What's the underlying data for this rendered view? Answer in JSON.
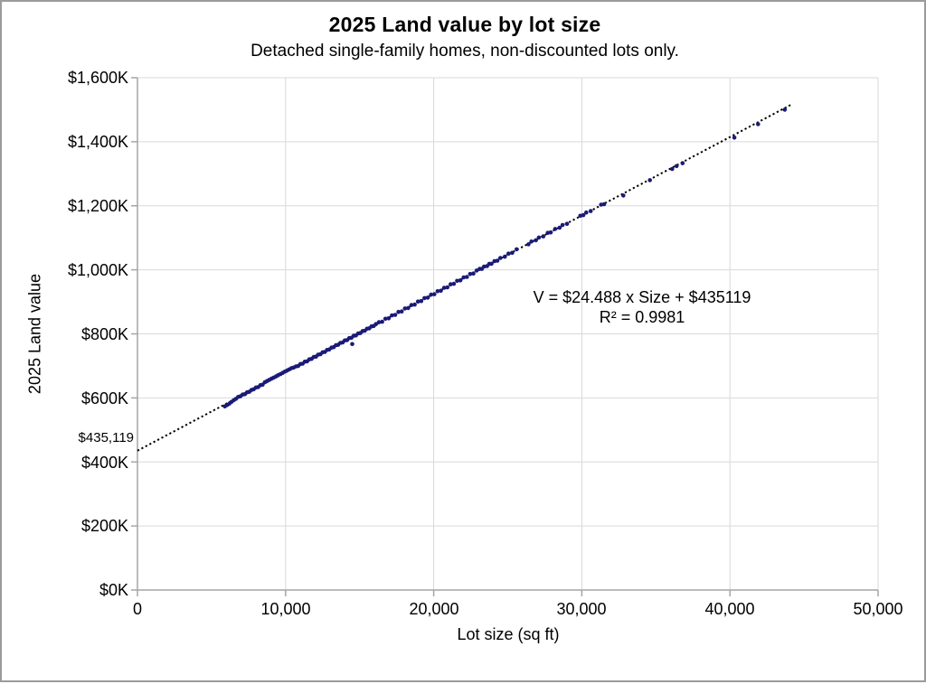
{
  "chart": {
    "title": "2025 Land value by lot size",
    "subtitle": "Detached single-family homes, non-discounted lots only.",
    "annotation_line1": "V = $24.488 x Size + $435119",
    "annotation_line2": "R² = 0.9981",
    "intercept_label": "$435,119",
    "x_axis_title": "Lot size (sq ft)",
    "y_axis_title": "2025 Land value"
  },
  "chart_data": {
    "type": "scatter",
    "title": "2025 Land value by lot size",
    "subtitle": "Detached single-family homes, non-discounted lots only.",
    "xlabel": "Lot size (sq ft)",
    "ylabel": "2025 Land value",
    "xlim": [
      0,
      50000
    ],
    "ylim_dollars_k": [
      0,
      1600
    ],
    "grid": true,
    "legend": "none",
    "x_ticks": [
      0,
      10000,
      20000,
      30000,
      40000,
      50000
    ],
    "x_tick_labels": [
      "0",
      "10,000",
      "20,000",
      "30,000",
      "40,000",
      "50,000"
    ],
    "y_ticks_k": [
      1600,
      1400,
      1200,
      1000,
      800,
      600,
      400,
      200,
      0
    ],
    "y_tick_labels": [
      "$1,600K",
      "$1,400K",
      "$1,200K",
      "$1,000K",
      "$800K",
      "$600K",
      "$400K",
      "$200K",
      "$0K"
    ],
    "marker_color": "#1a1a78",
    "gridline_color": "#d9d9d9",
    "axis_color": "#a6a6a6",
    "trendline": {
      "equation_text": "V = $24.488 x Size + $435119",
      "slope": 24.488,
      "intercept": 435119,
      "intercept_label": "$435,119",
      "r_squared": 0.9981,
      "x_start": 0,
      "x_end": 44200,
      "style": "dotted",
      "color": "#000000"
    },
    "points_size_sqft_vs_value_k": [
      [
        5900,
        573.6
      ],
      [
        6050,
        577.5
      ],
      [
        6200,
        582.0
      ],
      [
        6350,
        587.5
      ],
      [
        6500,
        593.0
      ],
      [
        6650,
        597.2
      ],
      [
        6800,
        603.0
      ],
      [
        6950,
        604.9
      ],
      [
        7100,
        610.5
      ],
      [
        7250,
        611.8
      ],
      [
        7400,
        617.5
      ],
      [
        7550,
        619.2
      ],
      [
        7700,
        624.8
      ],
      [
        7850,
        626.9
      ],
      [
        8000,
        632.4
      ],
      [
        8150,
        633.9
      ],
      [
        8300,
        639.6
      ],
      [
        8450,
        641.5
      ],
      [
        8600,
        648.9
      ],
      [
        8750,
        652.6
      ],
      [
        8900,
        656.3
      ],
      [
        9050,
        660.0
      ],
      [
        9200,
        663.5
      ],
      [
        9350,
        667.2
      ],
      [
        9500,
        671.0
      ],
      [
        9650,
        674.5
      ],
      [
        9800,
        678.2
      ],
      [
        9950,
        682.0
      ],
      [
        10100,
        685.5
      ],
      [
        10250,
        689.2
      ],
      [
        10400,
        693.0
      ],
      [
        10550,
        694.8
      ],
      [
        10700,
        698.5
      ],
      [
        10850,
        699.7
      ],
      [
        11000,
        705.8
      ],
      [
        11150,
        707.0
      ],
      [
        11300,
        713.1
      ],
      [
        11450,
        714.3
      ],
      [
        11600,
        720.5
      ],
      [
        11750,
        721.7
      ],
      [
        11900,
        727.8
      ],
      [
        12050,
        729.0
      ],
      [
        12200,
        735.2
      ],
      [
        12350,
        736.4
      ],
      [
        12500,
        742.5
      ],
      [
        12650,
        743.7
      ],
      [
        12800,
        749.9
      ],
      [
        12950,
        751.1
      ],
      [
        13100,
        757.2
      ],
      [
        13250,
        758.4
      ],
      [
        13400,
        764.6
      ],
      [
        13550,
        765.8
      ],
      [
        13700,
        771.9
      ],
      [
        13850,
        773.1
      ],
      [
        14000,
        779.3
      ],
      [
        14150,
        780.4
      ],
      [
        14300,
        786.6
      ],
      [
        14450,
        787.8
      ],
      [
        14600,
        794.0
      ],
      [
        14750,
        795.1
      ],
      [
        14900,
        801.3
      ],
      [
        15050,
        802.5
      ],
      [
        15200,
        808.7
      ],
      [
        15350,
        809.8
      ],
      [
        15500,
        816.0
      ],
      [
        15650,
        817.2
      ],
      [
        15800,
        823.3
      ],
      [
        15950,
        824.5
      ],
      [
        16100,
        830.6
      ],
      [
        14500,
        768.0
      ],
      [
        16300,
        836.3
      ],
      [
        16520,
        837.7
      ],
      [
        16740,
        847.1
      ],
      [
        16960,
        848.4
      ],
      [
        17180,
        857.8
      ],
      [
        17400,
        859.2
      ],
      [
        17620,
        868.6
      ],
      [
        17840,
        870.0
      ],
      [
        18060,
        879.4
      ],
      [
        18280,
        880.8
      ],
      [
        18500,
        890.1
      ],
      [
        18720,
        891.5
      ],
      [
        18940,
        900.9
      ],
      [
        19160,
        902.3
      ],
      [
        19380,
        911.7
      ],
      [
        19600,
        913.1
      ],
      [
        19820,
        922.5
      ],
      [
        20040,
        923.9
      ],
      [
        20260,
        933.2
      ],
      [
        20480,
        934.6
      ],
      [
        20700,
        944.0
      ],
      [
        20920,
        945.4
      ],
      [
        21140,
        954.8
      ],
      [
        21360,
        956.2
      ],
      [
        21580,
        965.6
      ],
      [
        21800,
        967.0
      ],
      [
        22020,
        976.3
      ],
      [
        22240,
        977.7
      ],
      [
        22460,
        987.1
      ],
      [
        22680,
        988.5
      ],
      [
        22900,
        997.9
      ],
      [
        23100,
        1002.8
      ],
      [
        23250,
        1003.0
      ],
      [
        23400,
        1010.1
      ],
      [
        23600,
        1011.5
      ],
      [
        23750,
        1018.7
      ],
      [
        23900,
        1018.9
      ],
      [
        24100,
        1027.3
      ],
      [
        24300,
        1028.7
      ],
      [
        24500,
        1037.1
      ],
      [
        24800,
        1040.9
      ],
      [
        25050,
        1050.5
      ],
      [
        25300,
        1053.1
      ],
      [
        25600,
        1064.0
      ],
      [
        26400,
        1079.6
      ],
      [
        26600,
        1088.5
      ],
      [
        26900,
        1092.3
      ],
      [
        27100,
        1100.7
      ],
      [
        27400,
        1104.6
      ],
      [
        27700,
        1115.4
      ],
      [
        27900,
        1116.8
      ],
      [
        28200,
        1127.6
      ],
      [
        28500,
        1131.5
      ],
      [
        28700,
        1139.9
      ],
      [
        29000,
        1143.8
      ],
      [
        29900,
        1168.8
      ],
      [
        30100,
        1170.7
      ],
      [
        30300,
        1179.1
      ],
      [
        30600,
        1183.4
      ],
      [
        31300,
        1203.6
      ],
      [
        31500,
        1205.0
      ],
      [
        32800,
        1232.0
      ],
      [
        34600,
        1280.0
      ],
      [
        36100,
        1315.0
      ],
      [
        36400,
        1324.0
      ],
      [
        36800,
        1333.0
      ],
      [
        40300,
        1413.0
      ],
      [
        41900,
        1455.0
      ],
      [
        43700,
        1500.0
      ]
    ]
  }
}
